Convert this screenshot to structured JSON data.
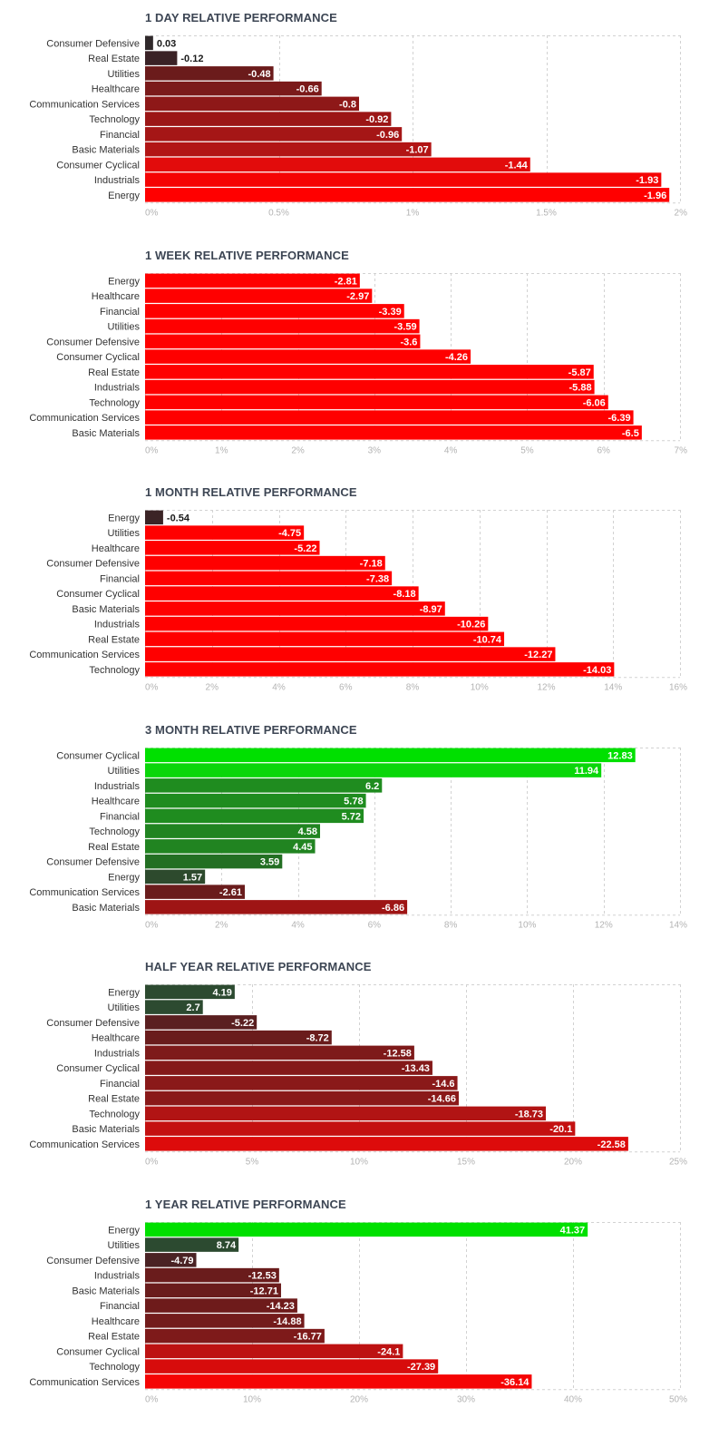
{
  "chart_data": [
    {
      "type": "bar",
      "orientation": "horizontal",
      "title": "1 DAY RELATIVE PERFORMANCE",
      "categories": [
        "Consumer Defensive",
        "Real Estate",
        "Utilities",
        "Healthcare",
        "Communication Services",
        "Technology",
        "Financial",
        "Basic Materials",
        "Consumer Cyclical",
        "Industrials",
        "Energy"
      ],
      "values": [
        0.03,
        -0.12,
        -0.48,
        -0.66,
        -0.8,
        -0.92,
        -0.96,
        -1.07,
        -1.44,
        -1.93,
        -1.96
      ],
      "value_labels": [
        "0.03",
        "-0.12",
        "-0.48",
        "-0.66",
        "-0.8",
        "-0.92",
        "-0.96",
        "-1.07",
        "-1.44",
        "-1.93",
        "-1.96"
      ],
      "colors": [
        "#30292b",
        "#3a2226",
        "#6b1b1b",
        "#7b1a1a",
        "#8e1818",
        "#9c1616",
        "#a51616",
        "#b21515",
        "#e20c0c",
        "#f50404",
        "#ff0000"
      ],
      "xlim": [
        0,
        2
      ],
      "xticks": [
        "0%",
        "0.5%",
        "1%",
        "1.5%",
        "2%"
      ]
    },
    {
      "type": "bar",
      "orientation": "horizontal",
      "title": "1 WEEK RELATIVE PERFORMANCE",
      "categories": [
        "Energy",
        "Healthcare",
        "Financial",
        "Utilities",
        "Consumer Defensive",
        "Consumer Cyclical",
        "Real Estate",
        "Industrials",
        "Technology",
        "Communication Services",
        "Basic Materials"
      ],
      "values": [
        -2.81,
        -2.97,
        -3.39,
        -3.59,
        -3.6,
        -4.26,
        -5.87,
        -5.88,
        -6.06,
        -6.39,
        -6.5
      ],
      "value_labels": [
        "-2.81",
        "-2.97",
        "-3.39",
        "-3.59",
        "-3.6",
        "-4.26",
        "-5.87",
        "-5.88",
        "-6.06",
        "-6.39",
        "-6.5"
      ],
      "colors": [
        "#ff0000",
        "#ff0000",
        "#ff0000",
        "#ff0000",
        "#ff0000",
        "#ff0000",
        "#ff0000",
        "#ff0000",
        "#ff0000",
        "#ff0000",
        "#ff0000"
      ],
      "xlim": [
        0,
        7
      ],
      "xticks": [
        "0%",
        "1%",
        "2%",
        "3%",
        "4%",
        "5%",
        "6%",
        "7%"
      ]
    },
    {
      "type": "bar",
      "orientation": "horizontal",
      "title": "1 MONTH RELATIVE PERFORMANCE",
      "categories": [
        "Energy",
        "Utilities",
        "Healthcare",
        "Consumer Defensive",
        "Financial",
        "Consumer Cyclical",
        "Basic Materials",
        "Industrials",
        "Real Estate",
        "Communication Services",
        "Technology"
      ],
      "values": [
        -0.54,
        -4.75,
        -5.22,
        -7.18,
        -7.38,
        -8.18,
        -8.97,
        -10.26,
        -10.74,
        -12.27,
        -14.03
      ],
      "value_labels": [
        "-0.54",
        "-4.75",
        "-5.22",
        "-7.18",
        "-7.38",
        "-8.18",
        "-8.97",
        "-10.26",
        "-10.74",
        "-12.27",
        "-14.03"
      ],
      "colors": [
        "#3b2426",
        "#ff0000",
        "#ff0000",
        "#ff0000",
        "#ff0000",
        "#ff0000",
        "#ff0000",
        "#ff0000",
        "#ff0000",
        "#ff0000",
        "#ff0000"
      ],
      "xlim": [
        0,
        16
      ],
      "xticks": [
        "0%",
        "2%",
        "4%",
        "6%",
        "8%",
        "10%",
        "12%",
        "14%",
        "16%"
      ]
    },
    {
      "type": "bar",
      "orientation": "horizontal",
      "title": "3 MONTH RELATIVE PERFORMANCE",
      "categories": [
        "Consumer Cyclical",
        "Utilities",
        "Industrials",
        "Healthcare",
        "Financial",
        "Technology",
        "Real Estate",
        "Consumer Defensive",
        "Energy",
        "Communication Services",
        "Basic Materials"
      ],
      "values": [
        12.83,
        11.94,
        6.2,
        5.78,
        5.72,
        4.58,
        4.45,
        3.59,
        1.57,
        -2.61,
        -6.86
      ],
      "value_labels": [
        "12.83",
        "11.94",
        "6.2",
        "5.78",
        "5.72",
        "4.58",
        "4.45",
        "3.59",
        "1.57",
        "-2.61",
        "-6.86"
      ],
      "colors": [
        "#00e000",
        "#0ad60a",
        "#1f8c1f",
        "#1f8c1f",
        "#1f8c1f",
        "#218421",
        "#218421",
        "#236f23",
        "#2d4a2d",
        "#6a1c1c",
        "#9e1515"
      ],
      "xlim": [
        0,
        14
      ],
      "xticks": [
        "0%",
        "2%",
        "4%",
        "6%",
        "8%",
        "10%",
        "12%",
        "14%"
      ]
    },
    {
      "type": "bar",
      "orientation": "horizontal",
      "title": "HALF YEAR RELATIVE PERFORMANCE",
      "categories": [
        "Energy",
        "Utilities",
        "Consumer Defensive",
        "Healthcare",
        "Industrials",
        "Consumer Cyclical",
        "Financial",
        "Real Estate",
        "Technology",
        "Basic Materials",
        "Communication Services"
      ],
      "values": [
        4.19,
        2.7,
        -5.22,
        -8.72,
        -12.58,
        -13.43,
        -14.6,
        -14.66,
        -18.73,
        -20.1,
        -22.58
      ],
      "value_labels": [
        "4.19",
        "2.7",
        "-5.22",
        "-8.72",
        "-12.58",
        "-13.43",
        "-14.6",
        "-14.66",
        "-18.73",
        "-20.1",
        "-22.58"
      ],
      "colors": [
        "#2c4a30",
        "#2c4a30",
        "#5a1f20",
        "#6a1c1c",
        "#7e1a1a",
        "#841919",
        "#8a1919",
        "#8a1919",
        "#b11414",
        "#c41010",
        "#dd0b0b"
      ],
      "xlim": [
        0,
        25
      ],
      "xticks": [
        "0%",
        "5%",
        "10%",
        "15%",
        "20%",
        "25%"
      ]
    },
    {
      "type": "bar",
      "orientation": "horizontal",
      "title": "1 YEAR RELATIVE PERFORMANCE",
      "categories": [
        "Energy",
        "Utilities",
        "Consumer Defensive",
        "Industrials",
        "Basic Materials",
        "Financial",
        "Healthcare",
        "Real Estate",
        "Consumer Cyclical",
        "Technology",
        "Communication Services"
      ],
      "values": [
        41.37,
        8.74,
        -4.79,
        -12.53,
        -12.71,
        -14.23,
        -14.88,
        -16.77,
        -24.1,
        -27.39,
        -36.14
      ],
      "value_labels": [
        "41.37",
        "8.74",
        "-4.79",
        "-12.53",
        "-12.71",
        "-14.23",
        "-14.88",
        "-16.77",
        "-24.1",
        "-27.39",
        "-36.14"
      ],
      "colors": [
        "#00e000",
        "#2c4a30",
        "#4a2224",
        "#6a1c1c",
        "#6a1c1c",
        "#6e1b1b",
        "#731b1b",
        "#7e1a1a",
        "#bd1212",
        "#d70c0c",
        "#f50404"
      ],
      "xlim": [
        0,
        50
      ],
      "xticks": [
        "0%",
        "10%",
        "20%",
        "30%",
        "40%",
        "50%"
      ]
    }
  ]
}
